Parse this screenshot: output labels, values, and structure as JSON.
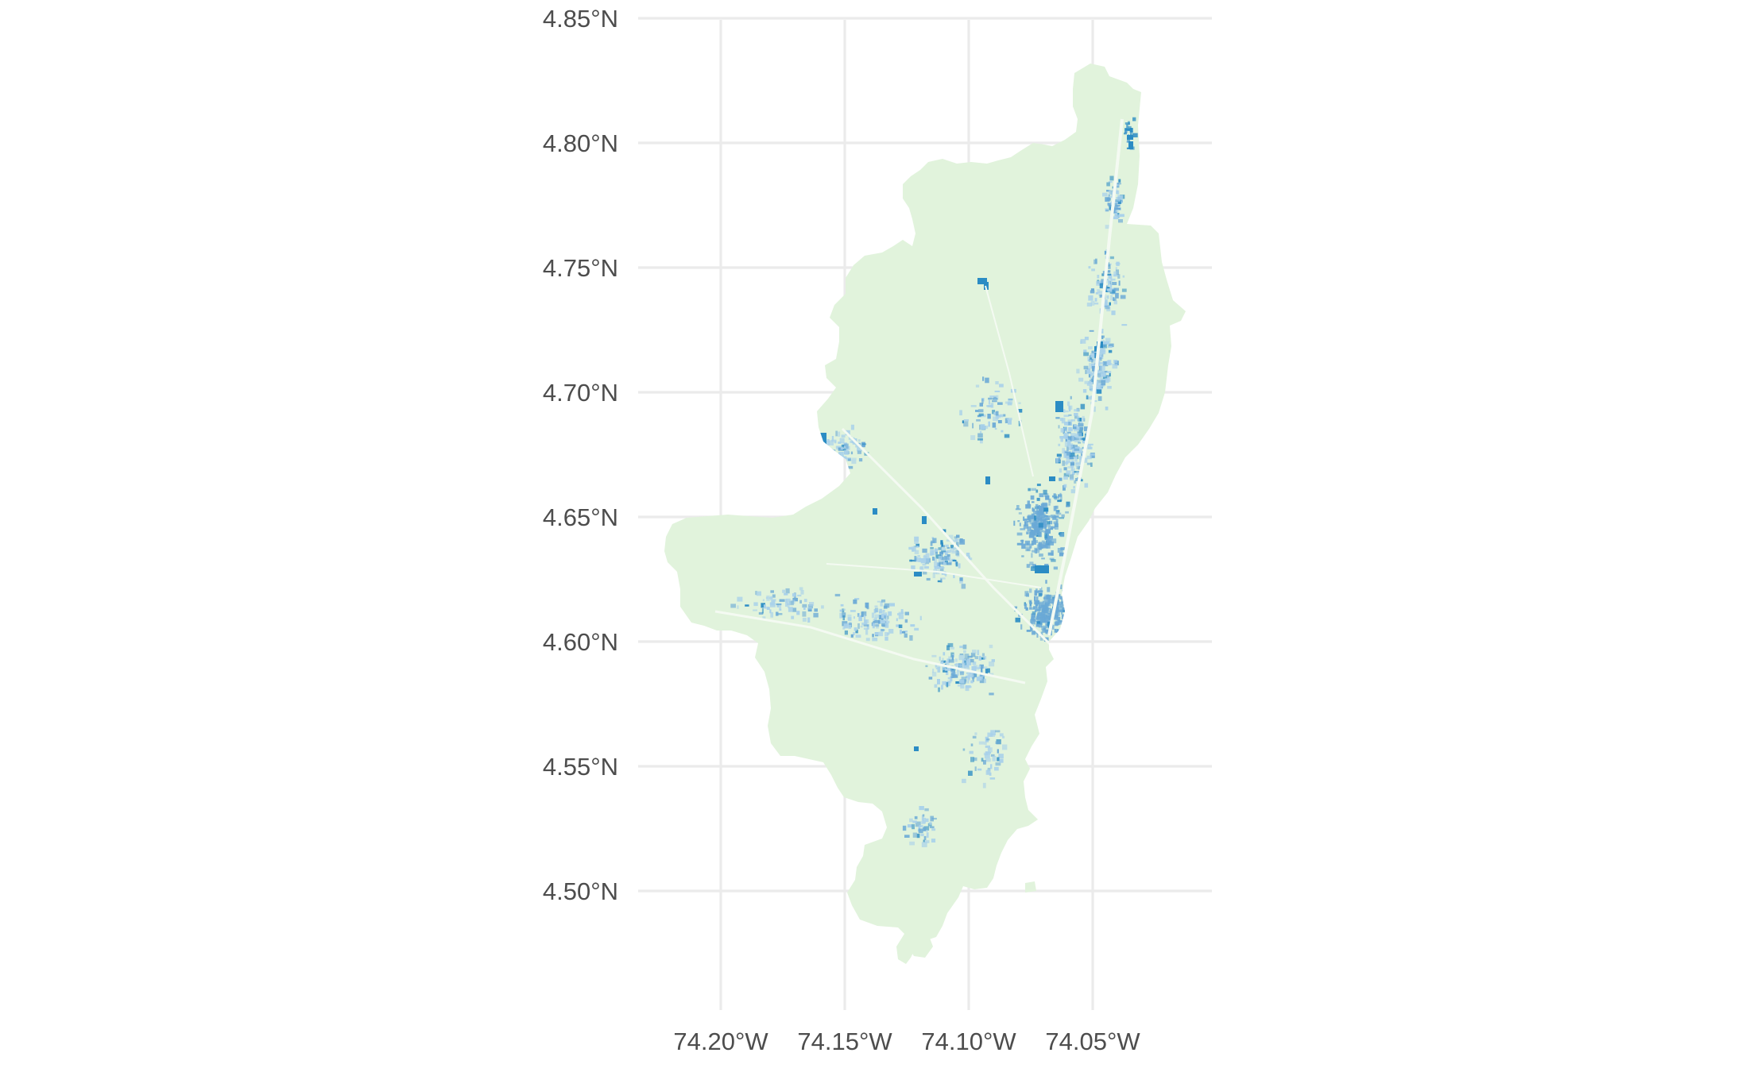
{
  "chart_data": {
    "type": "map",
    "title": "",
    "xlabel": "",
    "ylabel": "",
    "x_axis": {
      "ticks": [
        -74.2,
        -74.15,
        -74.1,
        -74.05
      ],
      "tick_labels": [
        "74.20°W",
        "74.15°W",
        "74.10°W",
        "74.05°W"
      ],
      "range": [
        -74.235,
        -74.003
      ]
    },
    "y_axis": {
      "ticks": [
        4.5,
        4.55,
        4.6,
        4.65,
        4.7,
        4.75,
        4.8,
        4.85
      ],
      "tick_labels": [
        "4.50°N",
        "4.55°N",
        "4.60°N",
        "4.65°N",
        "4.70°N",
        "4.75°N",
        "4.80°N",
        "4.85°N"
      ],
      "range": [
        4.462,
        4.85
      ]
    },
    "grid": true,
    "legend": "none",
    "fill_colors": {
      "base": "#e1f3dc",
      "light": "#a9d1ea",
      "medium": "#6aa9d6",
      "dark": "#2b8cc4"
    },
    "grid_color": "#ebebeb",
    "text_color": "#4d4d4d"
  }
}
